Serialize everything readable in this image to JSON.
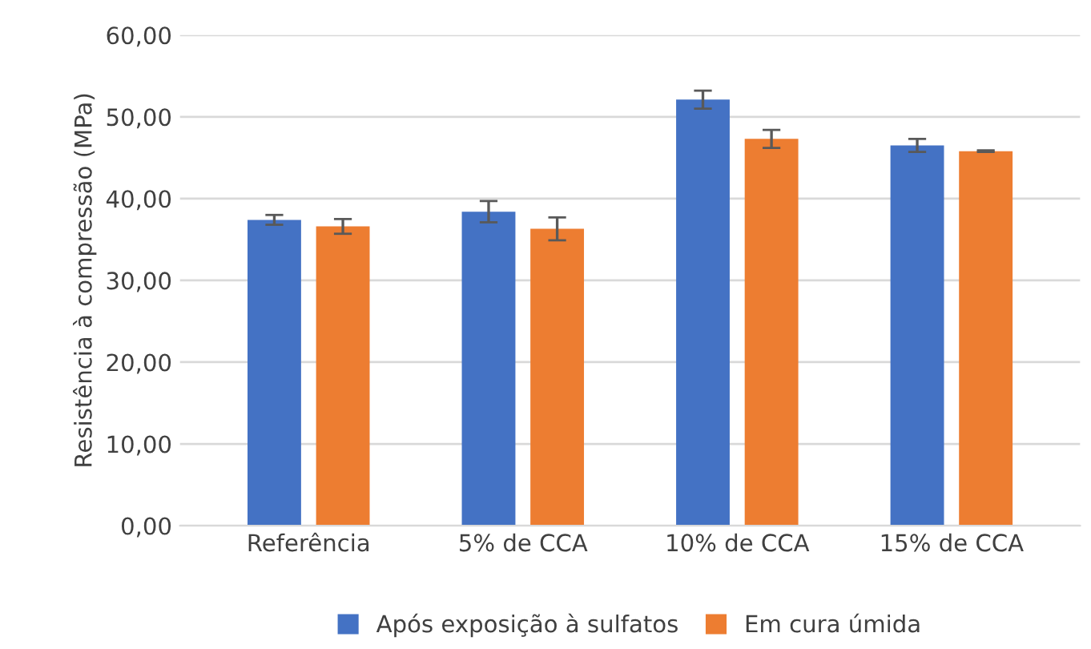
{
  "chart_data": {
    "type": "bar",
    "ylabel": "Resistência à compressão (MPa)",
    "categories": [
      "Referência",
      "5% de CCA",
      "10% de CCA",
      "15% de CCA"
    ],
    "series": [
      {
        "name": "Após exposição à sulfatos",
        "color": "#4472c4",
        "values": [
          37.4,
          38.4,
          52.1,
          46.5
        ],
        "errors": [
          0.6,
          1.3,
          1.1,
          0.8
        ]
      },
      {
        "name": "Em cura úmida",
        "color": "#ed7d31",
        "values": [
          36.6,
          36.3,
          47.3,
          45.8
        ],
        "errors": [
          0.9,
          1.4,
          1.1,
          0.1
        ]
      }
    ],
    "ylim": [
      0,
      60
    ],
    "yticks": [
      {
        "value": 0,
        "label": "0,00"
      },
      {
        "value": 10,
        "label": "10,00"
      },
      {
        "value": 20,
        "label": "20,00"
      },
      {
        "value": 30,
        "label": "30,00"
      },
      {
        "value": 40,
        "label": "40,00"
      },
      {
        "value": 50,
        "label": "50,00"
      },
      {
        "value": 60,
        "label": "60,00"
      }
    ],
    "grid": "y",
    "legend": "bottom"
  }
}
